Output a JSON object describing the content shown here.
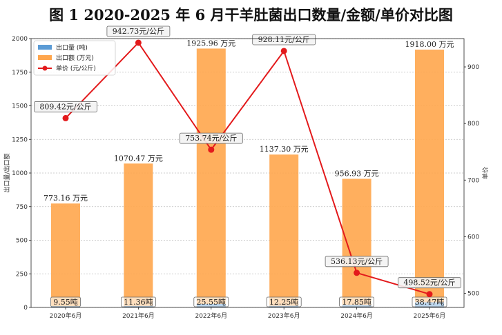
{
  "title": "图 1 2020-2025 年 6 月干羊肚菌出口数量/金额/单价对比图",
  "chart_data": {
    "type": "bar",
    "title": "图 1 2020-2025 年 6 月干羊肚菌出口数量/金额/单价对比图",
    "categories": [
      "2020年6月",
      "2021年6月",
      "2022年6月",
      "2023年6月",
      "2024年6月",
      "2025年6月"
    ],
    "ylabel": "出口量/出口额",
    "y2label": "单价",
    "ylim": [
      0,
      2000
    ],
    "y2lim": [
      475,
      950
    ],
    "yticks": [
      0,
      250,
      500,
      750,
      1000,
      1250,
      1500,
      1750,
      2000
    ],
    "y2ticks": [
      500,
      600,
      700,
      800,
      900
    ],
    "grid": true,
    "legend_position": "top-left",
    "series": [
      {
        "name": "出口量 (吨)",
        "type": "bar",
        "color": "#5b9bd5",
        "values": [
          9.55,
          11.36,
          25.55,
          12.25,
          17.85,
          38.47
        ],
        "labels": [
          "9.55吨",
          "11.36吨",
          "25.55吨",
          "12.25吨",
          "17.85吨",
          "38.47吨"
        ]
      },
      {
        "name": "出口额 (万元)",
        "type": "bar",
        "color": "#ffa64d",
        "values": [
          773.16,
          1070.47,
          1925.96,
          1137.3,
          956.93,
          1918.0
        ],
        "labels": [
          "773.16 万元",
          "1070.47 万元",
          "1925.96 万元",
          "1137.30 万元",
          "956.93 万元",
          "1918.00 万元"
        ]
      },
      {
        "name": "单价 (元/公斤)",
        "type": "line",
        "axis": "right",
        "color": "#e31a1c",
        "values": [
          809.42,
          942.73,
          753.74,
          928.11,
          536.13,
          498.52
        ],
        "labels": [
          "809.42元/公斤",
          "942.73元/公斤",
          "753.74元/公斤",
          "928.11元/公斤",
          "536.13元/公斤",
          "498.52元/公斤"
        ]
      }
    ]
  }
}
